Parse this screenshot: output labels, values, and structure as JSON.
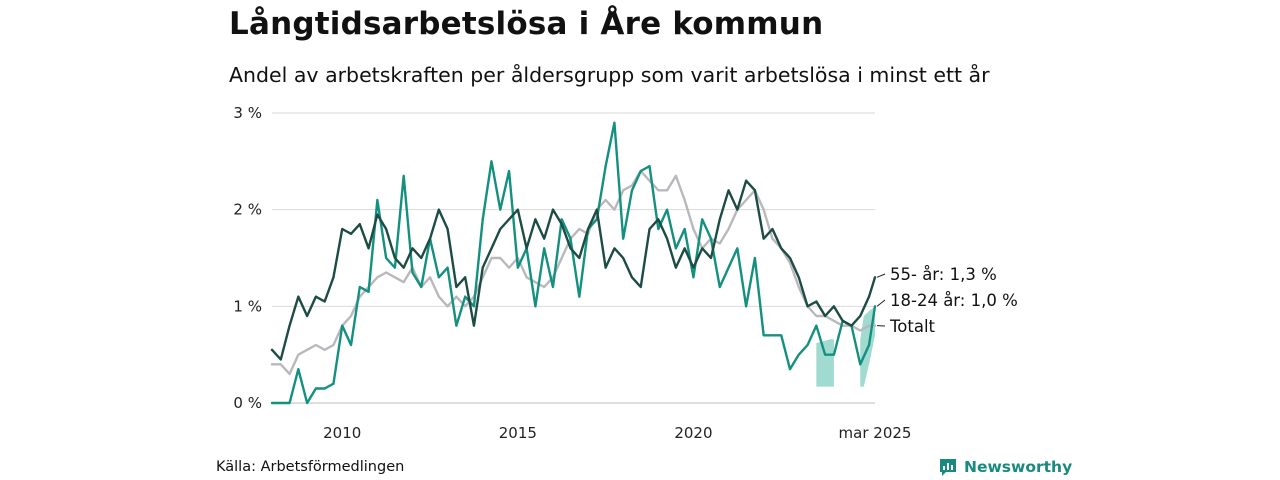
{
  "header": {
    "title": "Långtidsarbetslösa i Åre kommun",
    "subtitle": "Andel av arbetskraften per åldersgrupp som varit arbetslösa i minst ett år"
  },
  "footer": {
    "source": "Källa: Arbetsförmedlingen",
    "brand": "Newsworthy",
    "brand_color": "#1a8a80"
  },
  "chart_data": {
    "type": "line",
    "title": "Långtidsarbetslösa i Åre kommun",
    "subtitle": "Andel av arbetskraften per åldersgrupp som varit arbetslösa i minst ett år",
    "x_unit": "year",
    "xlim": [
      2008.0,
      2025.17
    ],
    "ylim": [
      0,
      3
    ],
    "y_ticks": [
      0,
      1,
      2,
      3
    ],
    "y_tick_labels": [
      "0 %",
      "1 %",
      "2 %",
      "3 %"
    ],
    "x_ticks": [
      2010,
      2015,
      2020,
      2025.17
    ],
    "x_tick_labels": [
      "2010",
      "2015",
      "2020",
      "mar 2025"
    ],
    "grid": "horizontal",
    "series": [
      {
        "name": "Totalt",
        "end_label": "Totalt",
        "color": "#b9b9bd",
        "x": [
          2008.0,
          2008.25,
          2008.5,
          2008.75,
          2009.0,
          2009.25,
          2009.5,
          2009.75,
          2010.0,
          2010.25,
          2010.5,
          2010.75,
          2011.0,
          2011.25,
          2011.5,
          2011.75,
          2012.0,
          2012.25,
          2012.5,
          2012.75,
          2013.0,
          2013.25,
          2013.5,
          2013.75,
          2014.0,
          2014.25,
          2014.5,
          2014.75,
          2015.0,
          2015.25,
          2015.5,
          2015.75,
          2016.0,
          2016.25,
          2016.5,
          2016.75,
          2017.0,
          2017.25,
          2017.5,
          2017.75,
          2018.0,
          2018.25,
          2018.5,
          2018.75,
          2019.0,
          2019.25,
          2019.5,
          2019.75,
          2020.0,
          2020.25,
          2020.5,
          2020.75,
          2021.0,
          2021.25,
          2021.5,
          2021.75,
          2022.0,
          2022.25,
          2022.5,
          2022.75,
          2023.0,
          2023.25,
          2023.5,
          2023.75,
          2024.0,
          2024.25,
          2024.5,
          2024.75,
          2025.0,
          2025.17
        ],
        "values": [
          0.4,
          0.4,
          0.3,
          0.5,
          0.55,
          0.6,
          0.55,
          0.6,
          0.8,
          0.9,
          1.1,
          1.2,
          1.3,
          1.35,
          1.3,
          1.25,
          1.4,
          1.2,
          1.3,
          1.1,
          1.0,
          1.1,
          1.0,
          1.1,
          1.3,
          1.5,
          1.5,
          1.4,
          1.5,
          1.3,
          1.25,
          1.2,
          1.3,
          1.5,
          1.7,
          1.8,
          1.75,
          2.0,
          2.1,
          2.0,
          2.2,
          2.25,
          2.4,
          2.3,
          2.2,
          2.2,
          2.35,
          2.1,
          1.8,
          1.6,
          1.7,
          1.65,
          1.8,
          2.0,
          2.1,
          2.2,
          2.0,
          1.7,
          1.6,
          1.45,
          1.2,
          1.0,
          0.9,
          0.9,
          0.85,
          0.8,
          0.8,
          0.75,
          0.8,
          0.8
        ]
      },
      {
        "name": "18-24 år",
        "end_label": "18-24 år: 1,0 %",
        "color": "#14907f",
        "x": [
          2008.0,
          2008.25,
          2008.5,
          2008.75,
          2009.0,
          2009.25,
          2009.5,
          2009.75,
          2010.0,
          2010.25,
          2010.5,
          2010.75,
          2011.0,
          2011.25,
          2011.5,
          2011.75,
          2012.0,
          2012.25,
          2012.5,
          2012.75,
          2013.0,
          2013.25,
          2013.5,
          2013.75,
          2014.0,
          2014.25,
          2014.5,
          2014.75,
          2015.0,
          2015.25,
          2015.5,
          2015.75,
          2016.0,
          2016.25,
          2016.5,
          2016.75,
          2017.0,
          2017.25,
          2017.5,
          2017.75,
          2018.0,
          2018.25,
          2018.5,
          2018.75,
          2019.0,
          2019.25,
          2019.5,
          2019.75,
          2020.0,
          2020.25,
          2020.5,
          2020.75,
          2021.0,
          2021.25,
          2021.5,
          2021.75,
          2022.0,
          2022.25,
          2022.5,
          2022.75,
          2023.0,
          2023.25,
          2023.5,
          2023.75,
          2024.0,
          2024.25,
          2024.5,
          2024.75,
          2025.0,
          2025.17
        ],
        "values": [
          0.0,
          0.0,
          0.0,
          0.35,
          0.0,
          0.15,
          0.15,
          0.2,
          0.8,
          0.6,
          1.2,
          1.15,
          2.1,
          1.5,
          1.4,
          2.35,
          1.35,
          1.2,
          1.7,
          1.3,
          1.4,
          0.8,
          1.1,
          1.0,
          1.9,
          2.5,
          2.0,
          2.4,
          1.4,
          1.6,
          1.0,
          1.6,
          1.2,
          1.9,
          1.7,
          1.1,
          1.8,
          1.9,
          2.45,
          2.9,
          1.7,
          2.2,
          2.4,
          2.45,
          1.8,
          2.0,
          1.6,
          1.8,
          1.3,
          1.9,
          1.7,
          1.2,
          1.4,
          1.6,
          1.0,
          1.5,
          0.7,
          0.7,
          0.7,
          0.35,
          0.5,
          0.6,
          0.8,
          0.5,
          0.5,
          0.85,
          0.8,
          0.4,
          0.6,
          1.0
        ]
      },
      {
        "name": "55- år",
        "end_label": "55- år: 1,3 %",
        "color": "#1d4c44",
        "x": [
          2008.0,
          2008.25,
          2008.5,
          2008.75,
          2009.0,
          2009.25,
          2009.5,
          2009.75,
          2010.0,
          2010.25,
          2010.5,
          2010.75,
          2011.0,
          2011.25,
          2011.5,
          2011.75,
          2012.0,
          2012.25,
          2012.5,
          2012.75,
          2013.0,
          2013.25,
          2013.5,
          2013.75,
          2014.0,
          2014.25,
          2014.5,
          2014.75,
          2015.0,
          2015.25,
          2015.5,
          2015.75,
          2016.0,
          2016.25,
          2016.5,
          2016.75,
          2017.0,
          2017.25,
          2017.5,
          2017.75,
          2018.0,
          2018.25,
          2018.5,
          2018.75,
          2019.0,
          2019.25,
          2019.5,
          2019.75,
          2020.0,
          2020.25,
          2020.5,
          2020.75,
          2021.0,
          2021.25,
          2021.5,
          2021.75,
          2022.0,
          2022.25,
          2022.5,
          2022.75,
          2023.0,
          2023.25,
          2023.5,
          2023.75,
          2024.0,
          2024.25,
          2024.5,
          2024.75,
          2025.0,
          2025.17
        ],
        "values": [
          0.55,
          0.45,
          0.8,
          1.1,
          0.9,
          1.1,
          1.05,
          1.3,
          1.8,
          1.75,
          1.85,
          1.6,
          1.95,
          1.8,
          1.5,
          1.4,
          1.6,
          1.5,
          1.7,
          2.0,
          1.8,
          1.2,
          1.3,
          0.8,
          1.4,
          1.6,
          1.8,
          1.9,
          2.0,
          1.6,
          1.9,
          1.7,
          2.0,
          1.85,
          1.6,
          1.5,
          1.8,
          2.0,
          1.4,
          1.6,
          1.5,
          1.3,
          1.2,
          1.8,
          1.9,
          1.7,
          1.4,
          1.6,
          1.4,
          1.6,
          1.5,
          1.9,
          2.2,
          2.0,
          2.3,
          2.2,
          1.7,
          1.8,
          1.6,
          1.5,
          1.3,
          1.0,
          1.05,
          0.9,
          1.0,
          0.85,
          0.8,
          0.9,
          1.1,
          1.3
        ]
      }
    ],
    "uncertainty_band": {
      "series": "18-24 år",
      "color": "#8fd3c8",
      "segments": [
        {
          "x": [
            2023.5,
            2023.7,
            2023.9,
            2024.0
          ],
          "low": [
            0.17,
            0.17,
            0.17,
            0.17
          ],
          "high": [
            0.62,
            0.64,
            0.66,
            0.66
          ]
        },
        {
          "x": [
            2024.75,
            2024.85,
            2025.0,
            2025.17
          ],
          "low": [
            0.17,
            0.17,
            0.4,
            0.7
          ],
          "high": [
            0.65,
            0.9,
            0.95,
            1.0
          ]
        }
      ]
    }
  }
}
